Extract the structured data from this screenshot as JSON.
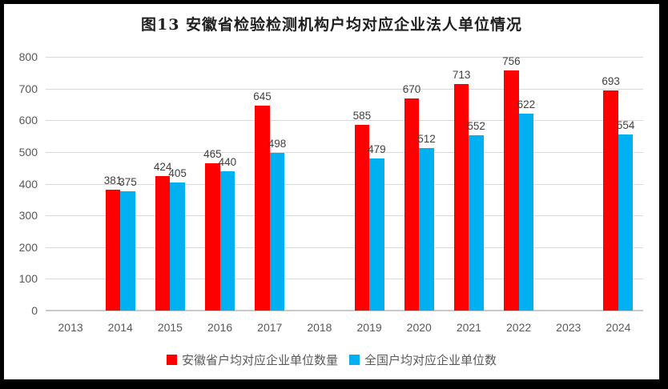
{
  "chart_data": {
    "type": "bar",
    "title": "图13  安徽省检验检测机构户均对应企业法人单位情况",
    "categories": [
      "2013",
      "2014",
      "2015",
      "2016",
      "2017",
      "2018",
      "2019",
      "2020",
      "2021",
      "2022",
      "2023",
      "2024"
    ],
    "series": [
      {
        "name": "安徽省户均对应企业单位数量",
        "color": "#FF0000",
        "values": [
          null,
          381,
          424,
          465,
          645,
          null,
          585,
          670,
          713,
          756,
          null,
          693
        ]
      },
      {
        "name": "全国户均对应企业单位数",
        "color": "#00B0F0",
        "values": [
          null,
          375,
          405,
          440,
          498,
          null,
          479,
          512,
          552,
          622,
          null,
          554
        ]
      }
    ],
    "ylim": [
      0,
      800
    ],
    "ytick_step": 100,
    "ytick_labels": [
      "0",
      "100",
      "200",
      "300",
      "400",
      "500",
      "600",
      "700",
      "800"
    ],
    "grid": true,
    "legend_position": "bottom",
    "xlabel": "",
    "ylabel": ""
  },
  "style": {
    "grid_color": "#d9d9d9",
    "axis_label_color": "#595959",
    "data_label_color": "#404040",
    "frame_color": "#000000",
    "background_color": "#ffffff"
  }
}
